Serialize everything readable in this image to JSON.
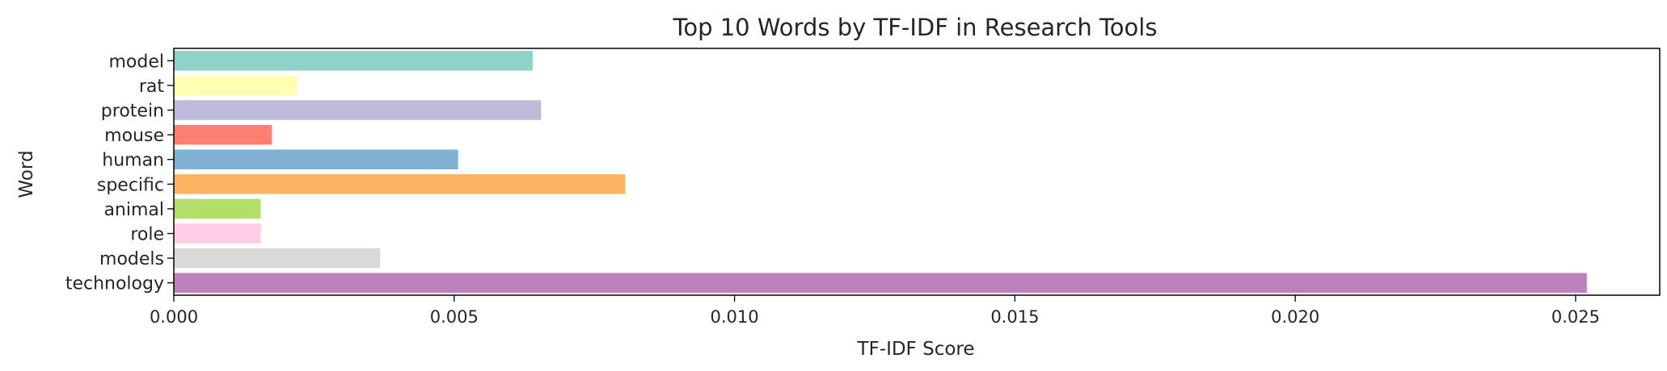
{
  "chart_data": {
    "type": "bar",
    "orientation": "horizontal",
    "title": "Top 10 Words by TF-IDF in Research Tools",
    "xlabel": "TF-IDF Score",
    "ylabel": "Word",
    "categories": [
      "model",
      "rat",
      "protein",
      "mouse",
      "human",
      "specific",
      "animal",
      "role",
      "models",
      "technology"
    ],
    "values": [
      0.0064,
      0.0022,
      0.00655,
      0.00175,
      0.00507,
      0.00805,
      0.00155,
      0.00155,
      0.00368,
      0.0252
    ],
    "colors": [
      "#8dd3c7",
      "#ffffb3",
      "#bebada",
      "#fb8072",
      "#80b1d3",
      "#fdb462",
      "#b3de69",
      "#fccde5",
      "#d9d9d9",
      "#bc80bd"
    ],
    "xlim": [
      0,
      0.0265
    ],
    "xticks": [
      0.0,
      0.005,
      0.01,
      0.015,
      0.02,
      0.025
    ],
    "xtick_labels": [
      "0.000",
      "0.005",
      "0.010",
      "0.015",
      "0.020",
      "0.025"
    ],
    "grid": false,
    "legend": "none"
  }
}
